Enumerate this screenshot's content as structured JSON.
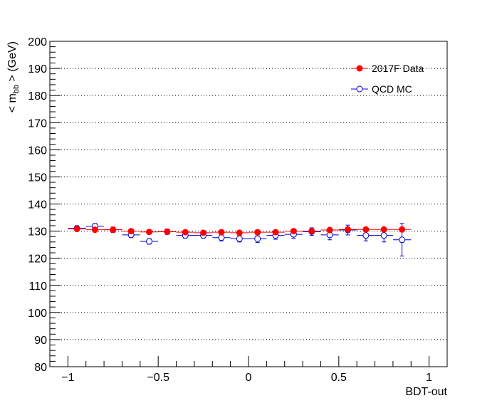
{
  "chart_data": {
    "type": "scatter",
    "xlabel": "BDT-out",
    "ylabel": {
      "prefix": "< m",
      "subscript": "bb",
      "suffix": " > (GeV)"
    },
    "xlim": [
      -1.1,
      1.1
    ],
    "ylim": [
      80,
      200
    ],
    "xticks": [
      -1,
      -0.5,
      0,
      0.5,
      1
    ],
    "xtick_labels": [
      "−1",
      "−0.5",
      "0",
      "0.5",
      "1"
    ],
    "yticks": [
      80,
      90,
      100,
      110,
      120,
      130,
      140,
      150,
      160,
      170,
      180,
      190,
      200
    ],
    "ytick_labels": [
      "80",
      "90",
      "100",
      "110",
      "120",
      "130",
      "140",
      "150",
      "160",
      "170",
      "180",
      "190",
      "200"
    ],
    "grid": "horizontal-dotted",
    "legend": {
      "placement": "top-right"
    },
    "series": [
      {
        "name": "2017F Data",
        "marker": "filled-circle",
        "color": "#ff0000",
        "x": [
          -0.95,
          -0.85,
          -0.75,
          -0.65,
          -0.55,
          -0.45,
          -0.35,
          -0.25,
          -0.15,
          -0.05,
          0.05,
          0.15,
          0.25,
          0.35,
          0.45,
          0.55,
          0.65,
          0.75,
          0.85
        ],
        "xerr": [
          0.05,
          0.05,
          0.05,
          0.05,
          0.05,
          0.05,
          0.05,
          0.05,
          0.05,
          0.05,
          0.05,
          0.05,
          0.05,
          0.05,
          0.05,
          0.05,
          0.05,
          0.05,
          0.05
        ],
        "y": [
          130.8,
          130.5,
          130.5,
          130.0,
          129.7,
          129.8,
          129.6,
          129.4,
          129.6,
          129.4,
          129.6,
          129.6,
          130.0,
          130.0,
          130.4,
          130.6,
          130.6,
          130.6,
          130.6
        ],
        "yerr": [
          0.6,
          0.4,
          0.3,
          0.3,
          0.3,
          0.3,
          0.3,
          0.3,
          0.3,
          0.3,
          0.3,
          0.3,
          0.3,
          0.3,
          0.3,
          0.4,
          0.4,
          0.5,
          0.6
        ]
      },
      {
        "name": "QCD MC",
        "marker": "open-circle",
        "color": "#0000cc",
        "x": [
          -0.95,
          -0.85,
          -0.75,
          -0.65,
          -0.55,
          -0.45,
          -0.35,
          -0.25,
          -0.15,
          -0.05,
          0.05,
          0.15,
          0.25,
          0.35,
          0.45,
          0.55,
          0.65,
          0.75,
          0.85
        ],
        "xerr": [
          0.05,
          0.05,
          0.05,
          0.05,
          0.05,
          0.05,
          0.05,
          0.05,
          0.05,
          0.05,
          0.05,
          0.05,
          0.05,
          0.05,
          0.05,
          0.05,
          0.05,
          0.05,
          0.05
        ],
        "y": [
          131.0,
          131.8,
          130.5,
          128.6,
          126.2,
          129.8,
          128.4,
          128.4,
          127.6,
          127.2,
          127.2,
          128.4,
          128.8,
          129.8,
          128.6,
          130.4,
          128.4,
          128.4,
          126.8
        ],
        "yerr": [
          1.0,
          1.0,
          1.0,
          1.0,
          1.0,
          1.0,
          1.0,
          1.0,
          1.2,
          1.2,
          1.4,
          1.4,
          1.4,
          1.4,
          1.8,
          1.8,
          2.0,
          2.4,
          6.0
        ]
      }
    ]
  }
}
